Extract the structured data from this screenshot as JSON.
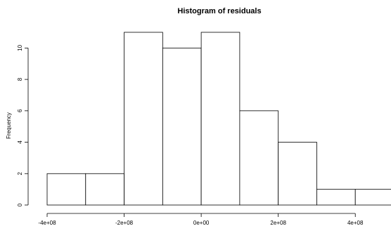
{
  "chart_data": {
    "type": "bar",
    "title": "Histogram of residuals",
    "xlabel": "",
    "ylabel": "Frequency",
    "bins": [
      {
        "start": -400000000,
        "end": -300000000,
        "count": 2
      },
      {
        "start": -300000000,
        "end": -200000000,
        "count": 2
      },
      {
        "start": -200000000,
        "end": -100000000,
        "count": 11
      },
      {
        "start": -100000000,
        "end": 0,
        "count": 10
      },
      {
        "start": 0,
        "end": 100000000,
        "count": 11
      },
      {
        "start": 100000000,
        "end": 200000000,
        "count": 6
      },
      {
        "start": 200000000,
        "end": 300000000,
        "count": 4
      },
      {
        "start": 300000000,
        "end": 400000000,
        "count": 1
      },
      {
        "start": 400000000,
        "end": 500000000,
        "count": 1
      }
    ],
    "x_ticks": [
      {
        "value": -400000000,
        "label": "-4e+08"
      },
      {
        "value": -200000000,
        "label": "-2e+08"
      },
      {
        "value": 0,
        "label": "0e+00"
      },
      {
        "value": 200000000,
        "label": "2e+08"
      },
      {
        "value": 400000000,
        "label": "4e+08"
      }
    ],
    "y_ticks": [
      {
        "value": 0,
        "label": "0"
      },
      {
        "value": 2,
        "label": "2"
      },
      {
        "value": 4,
        "label": "4"
      },
      {
        "value": 6,
        "label": "6"
      },
      {
        "value": 8,
        "label": "8"
      },
      {
        "value": 10,
        "label": "10"
      }
    ],
    "xlim": [
      -400000000,
      500000000
    ],
    "ylim": [
      0,
      11
    ],
    "grid": false,
    "legend": "none",
    "colors": {
      "bar_fill": "#ffffff",
      "bar_stroke": "#000000",
      "axis": "#000000"
    }
  }
}
